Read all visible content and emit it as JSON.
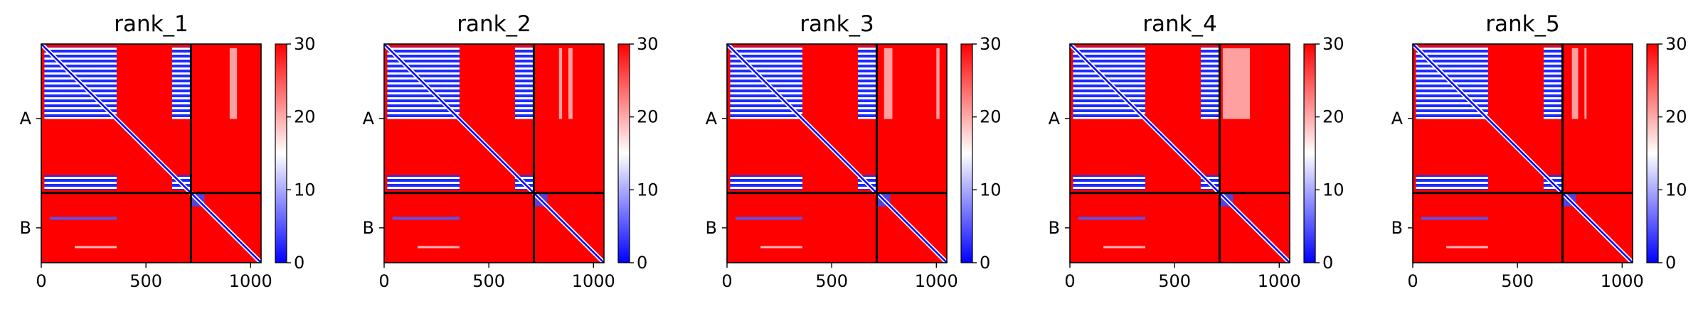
{
  "chart_data": {
    "type": "heatmap",
    "colormap": {
      "low": "#0000ff",
      "mid": "#ffffff",
      "high": "#ff0000"
    },
    "colorbar": {
      "range": [
        0,
        30
      ],
      "ticks": [
        "0",
        "10",
        "20",
        "30"
      ]
    },
    "xlim": [
      0,
      1050
    ],
    "x_ticks": [
      0,
      500,
      1000
    ],
    "x_tick_labels": [
      "0",
      "500",
      "1000"
    ],
    "chain_boundary": 715,
    "chains": [
      {
        "label": "A",
        "start": 0,
        "end": 715
      },
      {
        "label": "B",
        "start": 715,
        "end": 1050
      }
    ],
    "panels": [
      {
        "title": "rank_1",
        "chain_b_columns": [
          [
            900,
            935
          ]
        ]
      },
      {
        "title": "rank_2",
        "chain_b_columns": [
          [
            835,
            850
          ],
          [
            880,
            900
          ]
        ]
      },
      {
        "title": "rank_3",
        "chain_b_columns": [
          [
            750,
            790
          ],
          [
            1000,
            1015
          ]
        ]
      },
      {
        "title": "rank_4",
        "chain_b_columns": [
          [
            730,
            860
          ]
        ]
      },
      {
        "title": "rank_5",
        "chain_b_columns": [
          [
            760,
            790
          ],
          [
            820,
            830
          ]
        ]
      }
    ]
  }
}
